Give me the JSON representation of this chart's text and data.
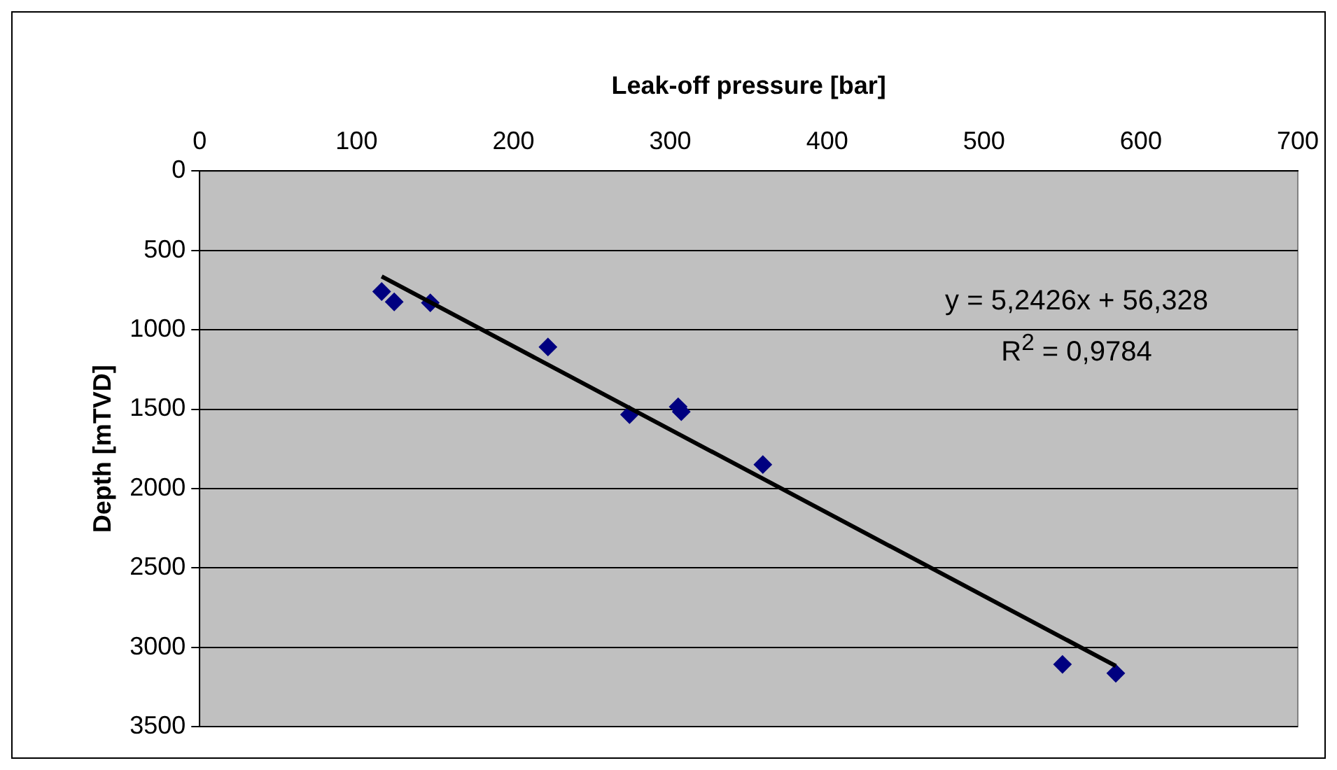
{
  "chart_data": {
    "type": "scatter",
    "xlabel": "Leak-off pressure [bar]",
    "ylabel": "Depth [mTVD]",
    "xlim": [
      0,
      700
    ],
    "xticks": [
      0,
      100,
      200,
      300,
      400,
      500,
      600,
      700
    ],
    "ylim": [
      3500,
      0
    ],
    "yticks": [
      0,
      500,
      1000,
      1500,
      2000,
      2500,
      3000,
      3500
    ],
    "grid": "y",
    "legend": false,
    "series": [
      {
        "color": "#000080",
        "marker": "diamond",
        "x": [
          116,
          124,
          147,
          222,
          274,
          305,
          307,
          359,
          550,
          584
        ],
        "values": [
          759,
          824,
          830,
          1108,
          1534,
          1485,
          1516,
          1849,
          3108,
          3164
        ]
      },
      {
        "type": "line",
        "color": "#000000",
        "marker": "none",
        "x": [
          116,
          584
        ],
        "values": [
          664,
          3118
        ]
      }
    ],
    "annotations": [
      "y = 5,2426x + 56,328",
      "R$^{2}$ = 0,9784"
    ]
  }
}
